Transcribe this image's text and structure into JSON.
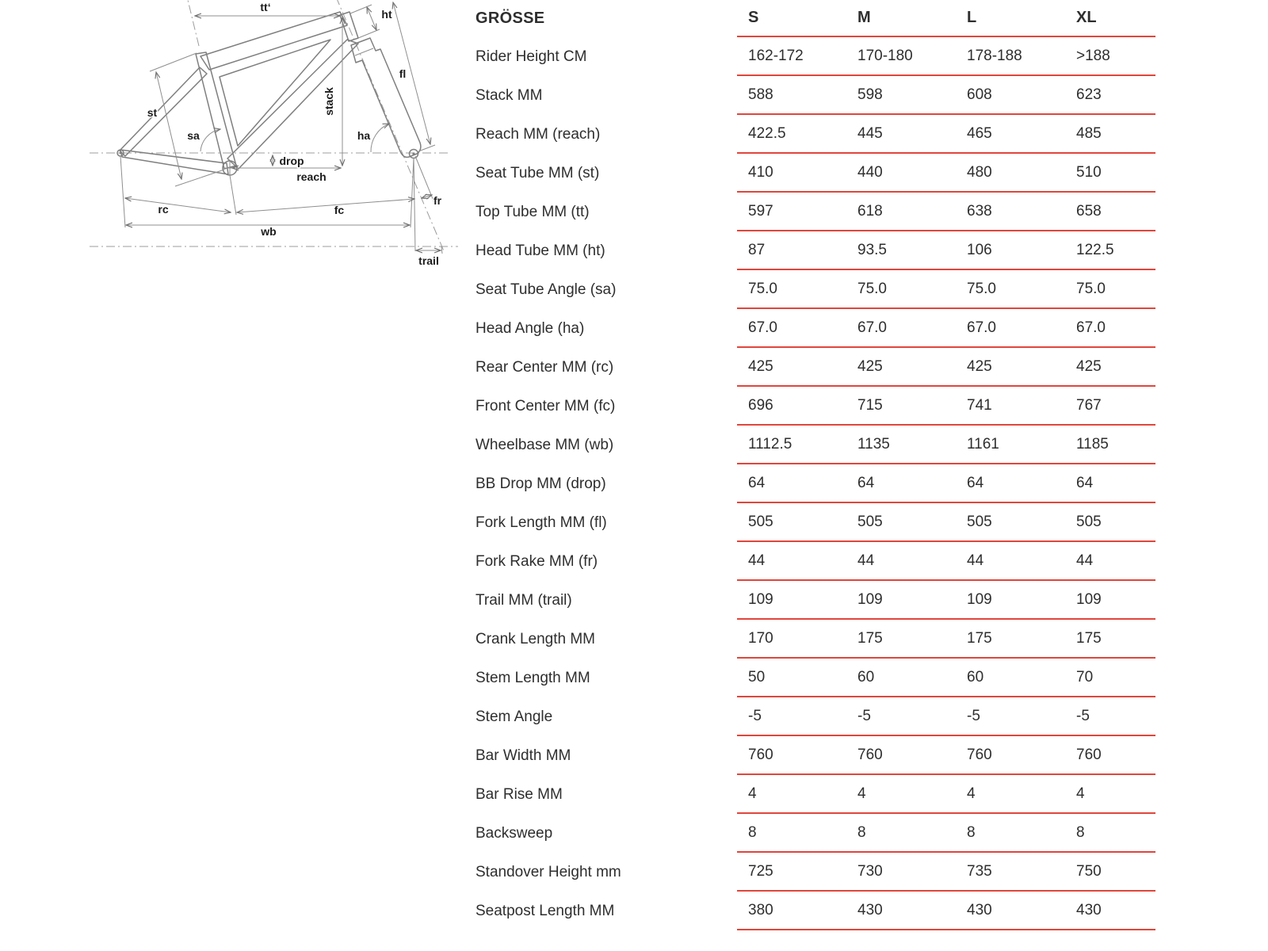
{
  "table": {
    "header": {
      "label": "GRÖSSE",
      "sizes": [
        "S",
        "M",
        "L",
        "XL"
      ]
    },
    "rows": [
      {
        "label": "Rider Height CM",
        "values": [
          "162-172",
          "170-180",
          "178-188",
          ">188"
        ]
      },
      {
        "label": "Stack MM",
        "values": [
          "588",
          "598",
          "608",
          "623"
        ]
      },
      {
        "label": "Reach MM (reach)",
        "values": [
          "422.5",
          "445",
          "465",
          "485"
        ]
      },
      {
        "label": "Seat Tube MM (st)",
        "values": [
          "410",
          "440",
          "480",
          "510"
        ]
      },
      {
        "label": "Top Tube MM (tt)",
        "values": [
          "597",
          "618",
          "638",
          "658"
        ]
      },
      {
        "label": "Head Tube MM (ht)",
        "values": [
          "87",
          "93.5",
          "106",
          "122.5"
        ]
      },
      {
        "label": "Seat Tube Angle (sa)",
        "values": [
          "75.0",
          "75.0",
          "75.0",
          "75.0"
        ]
      },
      {
        "label": "Head Angle (ha)",
        "values": [
          "67.0",
          "67.0",
          "67.0",
          "67.0"
        ]
      },
      {
        "label": "Rear Center MM (rc)",
        "values": [
          "425",
          "425",
          "425",
          "425"
        ]
      },
      {
        "label": "Front Center MM (fc)",
        "values": [
          "696",
          "715",
          "741",
          "767"
        ]
      },
      {
        "label": "Wheelbase MM (wb)",
        "values": [
          "1112.5",
          "1135",
          "1161",
          "1185"
        ]
      },
      {
        "label": "BB Drop MM (drop)",
        "values": [
          "64",
          "64",
          "64",
          "64"
        ]
      },
      {
        "label": "Fork Length MM (fl)",
        "values": [
          "505",
          "505",
          "505",
          "505"
        ]
      },
      {
        "label": "Fork Rake MM (fr)",
        "values": [
          "44",
          "44",
          "44",
          "44"
        ]
      },
      {
        "label": "Trail MM (trail)",
        "values": [
          "109",
          "109",
          "109",
          "109"
        ]
      },
      {
        "label": "Crank Length MM",
        "values": [
          "170",
          "175",
          "175",
          "175"
        ]
      },
      {
        "label": "Stem Length MM",
        "values": [
          "50",
          "60",
          "60",
          "70"
        ]
      },
      {
        "label": "Stem Angle",
        "values": [
          "-5",
          "-5",
          "-5",
          "-5"
        ]
      },
      {
        "label": "Bar Width MM",
        "values": [
          "760",
          "760",
          "760",
          "760"
        ]
      },
      {
        "label": "Bar Rise MM",
        "values": [
          "4",
          "4",
          "4",
          "4"
        ]
      },
      {
        "label": "Backsweep",
        "values": [
          "8",
          "8",
          "8",
          "8"
        ]
      },
      {
        "label": "Standover Height mm",
        "values": [
          "725",
          "730",
          "735",
          "750"
        ]
      },
      {
        "label": "Seatpost Length MM",
        "values": [
          "380",
          "430",
          "430",
          "430"
        ]
      }
    ]
  },
  "diagram": {
    "labels": {
      "tt": "tt‘",
      "ht": "ht",
      "fl": "fl",
      "stack": "stack",
      "st": "st",
      "sa": "sa",
      "ha": "ha",
      "drop": "drop",
      "reach": "reach",
      "rc": "rc",
      "fc": "fc",
      "wb": "wb",
      "fr": "fr",
      "trail": "trail"
    }
  },
  "colors": {
    "separator": "#e0463c",
    "table_text": "#2e2e2e",
    "diagram_line": "#8f8f8f"
  }
}
